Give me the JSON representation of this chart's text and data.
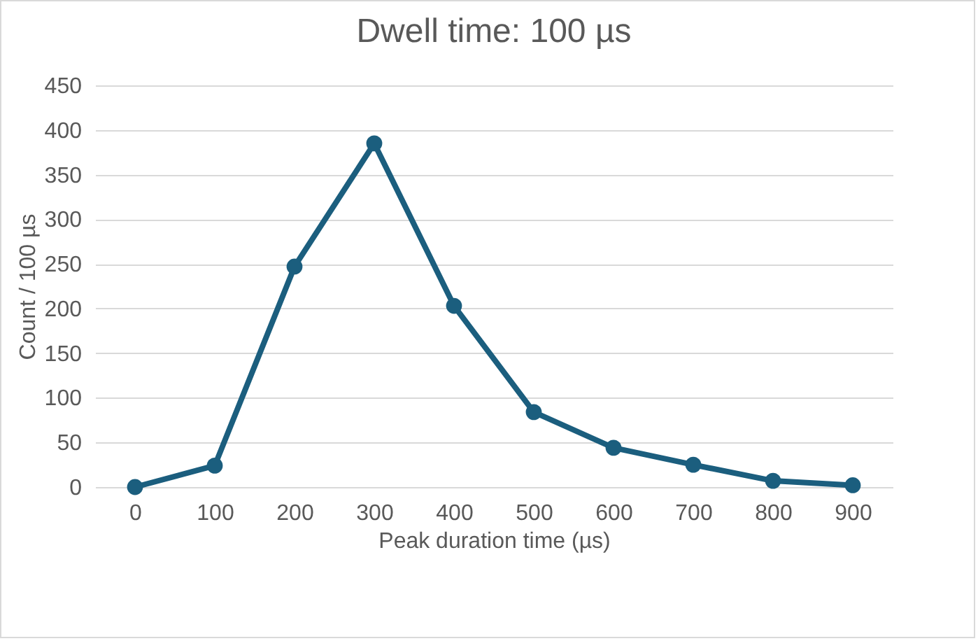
{
  "chart_data": {
    "type": "line",
    "title": "Dwell time: 100 µs",
    "xlabel": "Peak duration time (µs)",
    "ylabel": "Count / 100 µs",
    "categories": [
      "0",
      "100",
      "200",
      "300",
      "400",
      "500",
      "600",
      "700",
      "800",
      "900"
    ],
    "series": [
      {
        "color": "#1b5e7e",
        "values": [
          0,
          24,
          247,
          385,
          203,
          84,
          44,
          25,
          7,
          2
        ]
      }
    ],
    "ylim": [
      0,
      450
    ],
    "yticks": [
      0,
      50,
      100,
      150,
      200,
      250,
      300,
      350,
      400,
      450
    ],
    "grid": "y",
    "marker": "circle",
    "line_style": "solid"
  }
}
